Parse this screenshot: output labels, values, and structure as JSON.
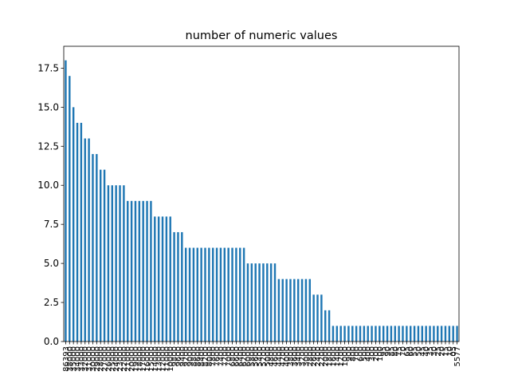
{
  "chart_data": {
    "type": "bar",
    "title": "number of numeric values",
    "xlabel": "",
    "ylabel": "",
    "ylim": [
      0,
      18.9
    ],
    "yticks": [
      "0.0",
      "2.5",
      "5.0",
      "7.5",
      "10.0",
      "12.5",
      "15.0",
      "17.5"
    ],
    "bar_color": "#1f77b4",
    "grid": false,
    "legend": "none",
    "categories": [
      "86393",
      "38000",
      "35000",
      "34000",
      "33000",
      "32000",
      "31000",
      "30000",
      "29000",
      "28000",
      "27000",
      "26000",
      "25000",
      "24000",
      "23000",
      "22000",
      "21000",
      "20000",
      "19000",
      "18000",
      "17000",
      "16000",
      "15000",
      "14000",
      "13000",
      "12000",
      "11000",
      "10000",
      "9800",
      "9600",
      "9400",
      "9200",
      "9000",
      "8800",
      "8600",
      "8400",
      "8200",
      "8000",
      "7800",
      "7600",
      "7400",
      "7200",
      "7000",
      "6800",
      "6600",
      "6400",
      "6200",
      "6000",
      "5800",
      "5600",
      "5400",
      "5200",
      "5000",
      "4800",
      "4600",
      "4400",
      "4200",
      "4000",
      "3800",
      "3600",
      "3400",
      "3200",
      "3000",
      "2800",
      "2600",
      "2400",
      "2200",
      "2000",
      "1800",
      "1600",
      "1400",
      "1200",
      "1000",
      "900",
      "800",
      "700",
      "600",
      "500",
      "400",
      "300",
      "200",
      "100",
      "95",
      "90",
      "85",
      "80",
      "75",
      "70",
      "65",
      "60",
      "55",
      "50",
      "45",
      "40",
      "35",
      "30",
      "25",
      "20",
      "15",
      "10",
      "05",
      "5577"
    ],
    "values": [
      18,
      17,
      15,
      14,
      14,
      13,
      13,
      12,
      12,
      11,
      11,
      10,
      10,
      10,
      10,
      10,
      9,
      9,
      9,
      9,
      9,
      9,
      9,
      8,
      8,
      8,
      8,
      8,
      7,
      7,
      7,
      6,
      6,
      6,
      6,
      6,
      6,
      6,
      6,
      6,
      6,
      6,
      6,
      6,
      6,
      6,
      6,
      5,
      5,
      5,
      5,
      5,
      5,
      5,
      5,
      4,
      4,
      4,
      4,
      4,
      4,
      4,
      4,
      4,
      3,
      3,
      3,
      2,
      2,
      1,
      1,
      1,
      1,
      1,
      1,
      1,
      1,
      1,
      1,
      1,
      1,
      1,
      1,
      1,
      1,
      1,
      1,
      1,
      1,
      1,
      1,
      1,
      1,
      1,
      1,
      1,
      1,
      1,
      1,
      1,
      1,
      1
    ]
  }
}
